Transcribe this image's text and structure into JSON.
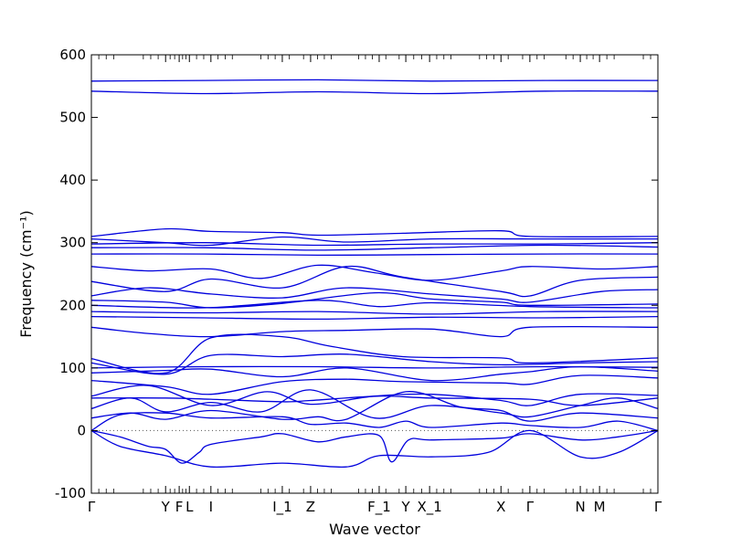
{
  "chart_data": {
    "type": "line",
    "title": "",
    "xlabel": "Wave vector",
    "ylabel": "Frequency (cm⁻¹)",
    "ylim": [
      -100,
      600
    ],
    "xlim": [
      0,
      1
    ],
    "yticks": [
      -100,
      0,
      100,
      200,
      300,
      400,
      500,
      600
    ],
    "grid": false,
    "legend": "none",
    "line_color": "#0000dd",
    "zero_line_color": "#555555",
    "kpoints": [
      {
        "label": "Γ",
        "x": 0.0
      },
      {
        "label": "Y",
        "x": 0.131
      },
      {
        "label": "F",
        "x": 0.155
      },
      {
        "label": "L",
        "x": 0.173
      },
      {
        "label": "I",
        "x": 0.211
      },
      {
        "label": "I_1",
        "x": 0.337
      },
      {
        "label": "Z",
        "x": 0.387
      },
      {
        "label": "F_1",
        "x": 0.508
      },
      {
        "label": "Y",
        "x": 0.555
      },
      {
        "label": "X_1",
        "x": 0.597
      },
      {
        "label": "X",
        "x": 0.723
      },
      {
        "label": "Γ",
        "x": 0.774
      },
      {
        "label": "N",
        "x": 0.863
      },
      {
        "label": "M",
        "x": 0.897
      },
      {
        "label": "Γ",
        "x": 1.0
      }
    ],
    "series": [
      {
        "values": [
          [
            0,
            558
          ],
          [
            0.2,
            559
          ],
          [
            0.4,
            560
          ],
          [
            0.6,
            558
          ],
          [
            0.8,
            559
          ],
          [
            1,
            559
          ]
        ]
      },
      {
        "values": [
          [
            0,
            542
          ],
          [
            0.2,
            538
          ],
          [
            0.4,
            541
          ],
          [
            0.6,
            538
          ],
          [
            0.8,
            542
          ],
          [
            1,
            542
          ]
        ]
      },
      {
        "values": [
          [
            0,
            310
          ],
          [
            0.131,
            322
          ],
          [
            0.211,
            318
          ],
          [
            0.337,
            316
          ],
          [
            0.4,
            312
          ],
          [
            0.55,
            315
          ],
          [
            0.723,
            319
          ],
          [
            0.774,
            310
          ],
          [
            1,
            310
          ]
        ]
      },
      {
        "values": [
          [
            0,
            306
          ],
          [
            0.131,
            300
          ],
          [
            0.211,
            296
          ],
          [
            0.337,
            309
          ],
          [
            0.45,
            301
          ],
          [
            0.6,
            306
          ],
          [
            0.774,
            306
          ],
          [
            1,
            306
          ]
        ]
      },
      {
        "values": [
          [
            0,
            298
          ],
          [
            0.2,
            300
          ],
          [
            0.4,
            296
          ],
          [
            0.6,
            298
          ],
          [
            0.8,
            298
          ],
          [
            1,
            300
          ]
        ]
      },
      {
        "values": [
          [
            0,
            292
          ],
          [
            0.2,
            292
          ],
          [
            0.4,
            288
          ],
          [
            0.6,
            292
          ],
          [
            0.8,
            296
          ],
          [
            1,
            293
          ]
        ]
      },
      {
        "values": [
          [
            0,
            282
          ],
          [
            0.2,
            282
          ],
          [
            0.4,
            280
          ],
          [
            0.6,
            281
          ],
          [
            0.8,
            282
          ],
          [
            1,
            282
          ]
        ]
      },
      {
        "values": [
          [
            0,
            262
          ],
          [
            0.1,
            255
          ],
          [
            0.211,
            258
          ],
          [
            0.3,
            243
          ],
          [
            0.4,
            264
          ],
          [
            0.5,
            252
          ],
          [
            0.6,
            240
          ],
          [
            0.723,
            255
          ],
          [
            0.774,
            262
          ],
          [
            0.9,
            258
          ],
          [
            1,
            262
          ]
        ]
      },
      {
        "values": [
          [
            0,
            238
          ],
          [
            0.131,
            222
          ],
          [
            0.211,
            242
          ],
          [
            0.337,
            228
          ],
          [
            0.45,
            262
          ],
          [
            0.55,
            245
          ],
          [
            0.723,
            222
          ],
          [
            0.774,
            215
          ],
          [
            0.863,
            240
          ],
          [
            1,
            245
          ]
        ]
      },
      {
        "values": [
          [
            0,
            215
          ],
          [
            0.1,
            228
          ],
          [
            0.211,
            218
          ],
          [
            0.337,
            212
          ],
          [
            0.45,
            228
          ],
          [
            0.6,
            218
          ],
          [
            0.723,
            210
          ],
          [
            0.774,
            205
          ],
          [
            0.9,
            222
          ],
          [
            1,
            225
          ]
        ]
      },
      {
        "values": [
          [
            0,
            208
          ],
          [
            0.131,
            205
          ],
          [
            0.211,
            196
          ],
          [
            0.337,
            203
          ],
          [
            0.5,
            220
          ],
          [
            0.6,
            210
          ],
          [
            0.723,
            205
          ],
          [
            0.774,
            200
          ],
          [
            1,
            202
          ]
        ]
      },
      {
        "values": [
          [
            0,
            200
          ],
          [
            0.2,
            196
          ],
          [
            0.4,
            208
          ],
          [
            0.508,
            198
          ],
          [
            0.6,
            204
          ],
          [
            0.774,
            198
          ],
          [
            1,
            196
          ]
        ]
      },
      {
        "values": [
          [
            0,
            190
          ],
          [
            0.2,
            188
          ],
          [
            0.4,
            190
          ],
          [
            0.6,
            186
          ],
          [
            0.8,
            190
          ],
          [
            1,
            190
          ]
        ]
      },
      {
        "values": [
          [
            0,
            182
          ],
          [
            0.2,
            180
          ],
          [
            0.4,
            178
          ],
          [
            0.6,
            181
          ],
          [
            0.8,
            180
          ],
          [
            1,
            182
          ]
        ]
      },
      {
        "values": [
          [
            0,
            165
          ],
          [
            0.1,
            155
          ],
          [
            0.211,
            150
          ],
          [
            0.337,
            158
          ],
          [
            0.45,
            160
          ],
          [
            0.6,
            162
          ],
          [
            0.723,
            150
          ],
          [
            0.774,
            165
          ],
          [
            1,
            165
          ]
        ]
      },
      {
        "values": [
          [
            0,
            115
          ],
          [
            0.131,
            92
          ],
          [
            0.211,
            148
          ],
          [
            0.337,
            150
          ],
          [
            0.42,
            135
          ],
          [
            0.55,
            118
          ],
          [
            0.723,
            116
          ],
          [
            0.774,
            108
          ],
          [
            1,
            116
          ]
        ]
      },
      {
        "values": [
          [
            0,
            108
          ],
          [
            0.131,
            90
          ],
          [
            0.211,
            120
          ],
          [
            0.337,
            118
          ],
          [
            0.45,
            122
          ],
          [
            0.6,
            110
          ],
          [
            0.723,
            105
          ],
          [
            0.863,
            108
          ],
          [
            1,
            110
          ]
        ]
      },
      {
        "values": [
          [
            0,
            100
          ],
          [
            0.2,
            102
          ],
          [
            0.4,
            102
          ],
          [
            0.6,
            100
          ],
          [
            0.8,
            102
          ],
          [
            1,
            101
          ]
        ]
      },
      {
        "values": [
          [
            0,
            92
          ],
          [
            0.131,
            96
          ],
          [
            0.211,
            98
          ],
          [
            0.337,
            86
          ],
          [
            0.45,
            100
          ],
          [
            0.6,
            80
          ],
          [
            0.723,
            90
          ],
          [
            0.774,
            94
          ],
          [
            0.863,
            102
          ],
          [
            1,
            95
          ]
        ]
      },
      {
        "values": [
          [
            0,
            80
          ],
          [
            0.131,
            70
          ],
          [
            0.211,
            58
          ],
          [
            0.337,
            78
          ],
          [
            0.45,
            82
          ],
          [
            0.55,
            78
          ],
          [
            0.723,
            76
          ],
          [
            0.774,
            74
          ],
          [
            0.863,
            88
          ],
          [
            1,
            84
          ]
        ]
      },
      {
        "values": [
          [
            0,
            55
          ],
          [
            0.1,
            72
          ],
          [
            0.211,
            40
          ],
          [
            0.31,
            62
          ],
          [
            0.387,
            42
          ],
          [
            0.5,
            55
          ],
          [
            0.6,
            58
          ],
          [
            0.723,
            48
          ],
          [
            0.774,
            40
          ],
          [
            0.863,
            58
          ],
          [
            1,
            56
          ]
        ]
      },
      {
        "values": [
          [
            0,
            52
          ],
          [
            0.131,
            52
          ],
          [
            0.211,
            50
          ],
          [
            0.337,
            46
          ],
          [
            0.387,
            48
          ],
          [
            0.508,
            55
          ],
          [
            0.6,
            52
          ],
          [
            0.774,
            50
          ],
          [
            0.863,
            40
          ],
          [
            1,
            52
          ]
        ]
      },
      {
        "values": [
          [
            0,
            35
          ],
          [
            0.07,
            52
          ],
          [
            0.131,
            30
          ],
          [
            0.211,
            45
          ],
          [
            0.3,
            30
          ],
          [
            0.387,
            65
          ],
          [
            0.5,
            20
          ],
          [
            0.6,
            40
          ],
          [
            0.723,
            28
          ],
          [
            0.774,
            22
          ],
          [
            0.863,
            40
          ],
          [
            0.93,
            52
          ],
          [
            1,
            35
          ]
        ]
      },
      {
        "values": [
          [
            0,
            20
          ],
          [
            0.07,
            28
          ],
          [
            0.131,
            18
          ],
          [
            0.211,
            32
          ],
          [
            0.337,
            18
          ],
          [
            0.4,
            22
          ],
          [
            0.45,
            18
          ],
          [
            0.555,
            62
          ],
          [
            0.65,
            38
          ],
          [
            0.723,
            32
          ],
          [
            0.774,
            15
          ],
          [
            0.863,
            28
          ],
          [
            1,
            20
          ]
        ]
      },
      {
        "values": [
          [
            0,
            0
          ],
          [
            0.05,
            25
          ],
          [
            0.131,
            28
          ],
          [
            0.211,
            20
          ],
          [
            0.337,
            22
          ],
          [
            0.387,
            10
          ],
          [
            0.45,
            12
          ],
          [
            0.508,
            5
          ],
          [
            0.555,
            15
          ],
          [
            0.6,
            5
          ],
          [
            0.723,
            12
          ],
          [
            0.774,
            8
          ],
          [
            0.863,
            5
          ],
          [
            0.93,
            15
          ],
          [
            1,
            0
          ]
        ]
      },
      {
        "values": [
          [
            0,
            0
          ],
          [
            0.05,
            -10
          ],
          [
            0.1,
            -25
          ],
          [
            0.131,
            -30
          ],
          [
            0.16,
            -52
          ],
          [
            0.19,
            -35
          ],
          [
            0.211,
            -22
          ],
          [
            0.3,
            -10
          ],
          [
            0.337,
            -5
          ],
          [
            0.4,
            -18
          ],
          [
            0.45,
            -10
          ],
          [
            0.508,
            -8
          ],
          [
            0.53,
            -50
          ],
          [
            0.56,
            -15
          ],
          [
            0.6,
            -15
          ],
          [
            0.723,
            -12
          ],
          [
            0.774,
            -5
          ],
          [
            0.863,
            -15
          ],
          [
            0.93,
            -10
          ],
          [
            1,
            0
          ]
        ]
      },
      {
        "values": [
          [
            0,
            0
          ],
          [
            0.05,
            -25
          ],
          [
            0.131,
            -40
          ],
          [
            0.211,
            -58
          ],
          [
            0.337,
            -52
          ],
          [
            0.45,
            -58
          ],
          [
            0.508,
            -40
          ],
          [
            0.6,
            -42
          ],
          [
            0.7,
            -35
          ],
          [
            0.774,
            0
          ],
          [
            0.863,
            -42
          ],
          [
            0.93,
            -35
          ],
          [
            1,
            0
          ]
        ]
      }
    ]
  }
}
